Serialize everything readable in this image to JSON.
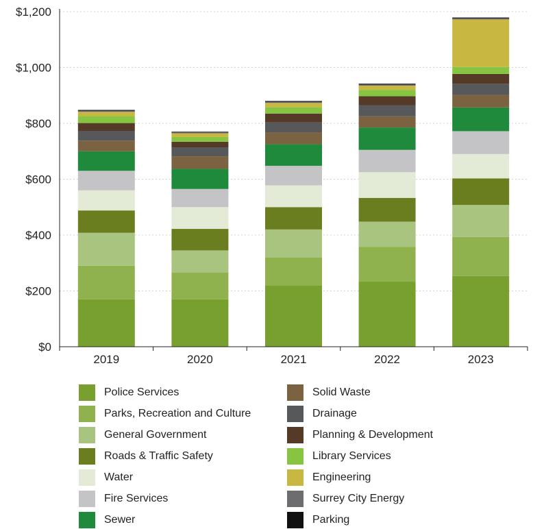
{
  "chart_data": {
    "type": "bar",
    "stacked": true,
    "categories": [
      "2019",
      "2020",
      "2021",
      "2022",
      "2023"
    ],
    "ylim": [
      0,
      1200
    ],
    "ytick_values": [
      0,
      200,
      400,
      600,
      800,
      1000,
      1200
    ],
    "ytick_labels": [
      "$0",
      "$200",
      "$400",
      "$600",
      "$800",
      "$1,000",
      "$1,200"
    ],
    "grid": true,
    "legend_placement": "bottom",
    "series": [
      {
        "name": "Police Services",
        "color": "#77a02e",
        "values": [
          170,
          170,
          220,
          233,
          253
        ]
      },
      {
        "name": "Parks, Recreation and Culture",
        "color": "#8fb24f",
        "values": [
          120,
          95,
          100,
          125,
          140
        ]
      },
      {
        "name": "General Government",
        "color": "#a8c47f",
        "values": [
          118,
          80,
          100,
          90,
          115
        ]
      },
      {
        "name": "Roads & Traffic Safety",
        "color": "#6b7e1f",
        "values": [
          80,
          77,
          80,
          85,
          95
        ]
      },
      {
        "name": "Water",
        "color": "#e3ead6",
        "values": [
          72,
          78,
          78,
          92,
          87
        ]
      },
      {
        "name": "Fire Services",
        "color": "#c4c4c6",
        "values": [
          70,
          65,
          70,
          80,
          82
        ]
      },
      {
        "name": "Sewer",
        "color": "#1f8a3c",
        "values": [
          70,
          72,
          77,
          80,
          85
        ]
      },
      {
        "name": "Solid Waste",
        "color": "#7b6241",
        "values": [
          38,
          45,
          43,
          40,
          45
        ]
      },
      {
        "name": "Drainage",
        "color": "#56585a",
        "values": [
          35,
          32,
          35,
          40,
          40
        ]
      },
      {
        "name": "Planning & Development",
        "color": "#553a27",
        "values": [
          28,
          20,
          32,
          32,
          35
        ]
      },
      {
        "name": "Library Services",
        "color": "#86c441",
        "values": [
          25,
          17,
          23,
          23,
          25
        ]
      },
      {
        "name": "Engineering",
        "color": "#c8b841",
        "values": [
          15,
          13,
          15,
          15,
          170
        ]
      },
      {
        "name": "Surrey City Energy",
        "color": "#6d6d6f",
        "values": [
          4,
          4,
          4,
          4,
          4
        ]
      },
      {
        "name": "Parking",
        "color": "#111111",
        "values": [
          3,
          2,
          3,
          3,
          3
        ]
      }
    ]
  }
}
